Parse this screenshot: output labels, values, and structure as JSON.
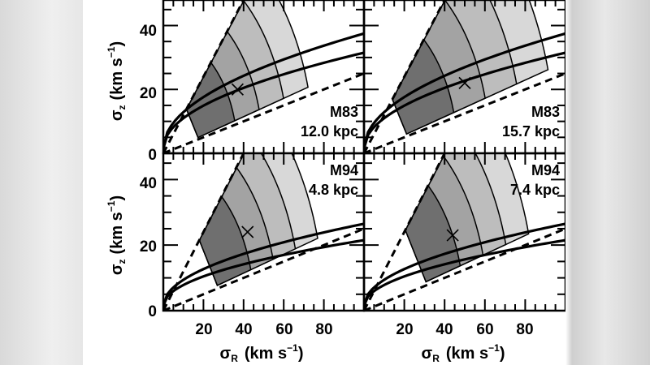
{
  "chart_data": {
    "type": "contour",
    "layout": "2x2 grid, shared axes",
    "xlabel": "σR (km s⁻¹)",
    "ylabel": "σz (km s⁻¹)",
    "xlim": [
      0,
      100
    ],
    "ylim": [
      0,
      48
    ],
    "x_ticks": [
      20,
      40,
      60,
      80
    ],
    "y_ticks": [
      0,
      20,
      40
    ],
    "panels": [
      {
        "galaxy": "M83",
        "radius": "12.0 kpc",
        "label": "M83\n12.0 kpc",
        "best_fit": [
          37,
          20
        ],
        "contour_shades": [
          "#d8d8d8",
          "#bdbdbd",
          "#a3a3a3",
          "#6f6f6f"
        ],
        "wedge": {
          "r_in": 18,
          "r_out": 75,
          "ang_low": 16,
          "ang_high": 50
        }
      },
      {
        "galaxy": "M83",
        "radius": "15.7 kpc",
        "label": "M83\n15.7 kpc",
        "best_fit": [
          50,
          22
        ],
        "contour_shades": [
          "#d8d8d8",
          "#bdbdbd",
          "#a3a3a3",
          "#6f6f6f"
        ],
        "wedge": {
          "r_in": 22,
          "r_out": 95,
          "ang_low": 16,
          "ang_high": 50
        }
      },
      {
        "galaxy": "M94",
        "radius": "4.8 kpc",
        "label": "M94\n4.8 kpc",
        "best_fit": [
          42,
          24
        ],
        "contour_shades": [
          "#d8d8d8",
          "#bdbdbd",
          "#a3a3a3",
          "#6f6f6f"
        ],
        "wedge": {
          "r_in": 28,
          "r_out": 80,
          "ang_low": 16,
          "ang_high": 50
        }
      },
      {
        "galaxy": "M94",
        "radius": "7.4 kpc",
        "label": "M94\n7.4 kpc",
        "best_fit": [
          44,
          23
        ],
        "contour_shades": [
          "#d8d8d8",
          "#bdbdbd",
          "#a3a3a3",
          "#6f6f6f"
        ],
        "wedge": {
          "r_in": 32,
          "r_out": 85,
          "ang_low": 16,
          "ang_high": 50
        }
      }
    ],
    "lines": {
      "dashed_upper_slope": 1.2,
      "dashed_lower_slope": 0.25,
      "solid_curves": "two power-law curves per panel"
    }
  },
  "labels": {
    "ylabel_main": "σ",
    "ylabel_sub": "z",
    "ylabel_units": "(km s",
    "ylabel_exp": "−1",
    "ylabel_close": ")",
    "xlabel_main": "σ",
    "xlabel_sub": "R",
    "xlabel_units": "(km s",
    "xlabel_exp": "−1",
    "xlabel_close": ")",
    "ytick_40": "40",
    "ytick_20": "20",
    "ytick_0": "0",
    "xtick_20": "20",
    "xtick_40": "40",
    "xtick_60": "60",
    "xtick_80": "80",
    "p1_line1": "M83",
    "p1_line2": "12.0 kpc",
    "p2_line1": "M83",
    "p2_line2": "15.7 kpc",
    "p3_line1": "M94",
    "p3_line2": "4.8 kpc",
    "p4_line1": "M94",
    "p4_line2": "7.4 kpc"
  }
}
